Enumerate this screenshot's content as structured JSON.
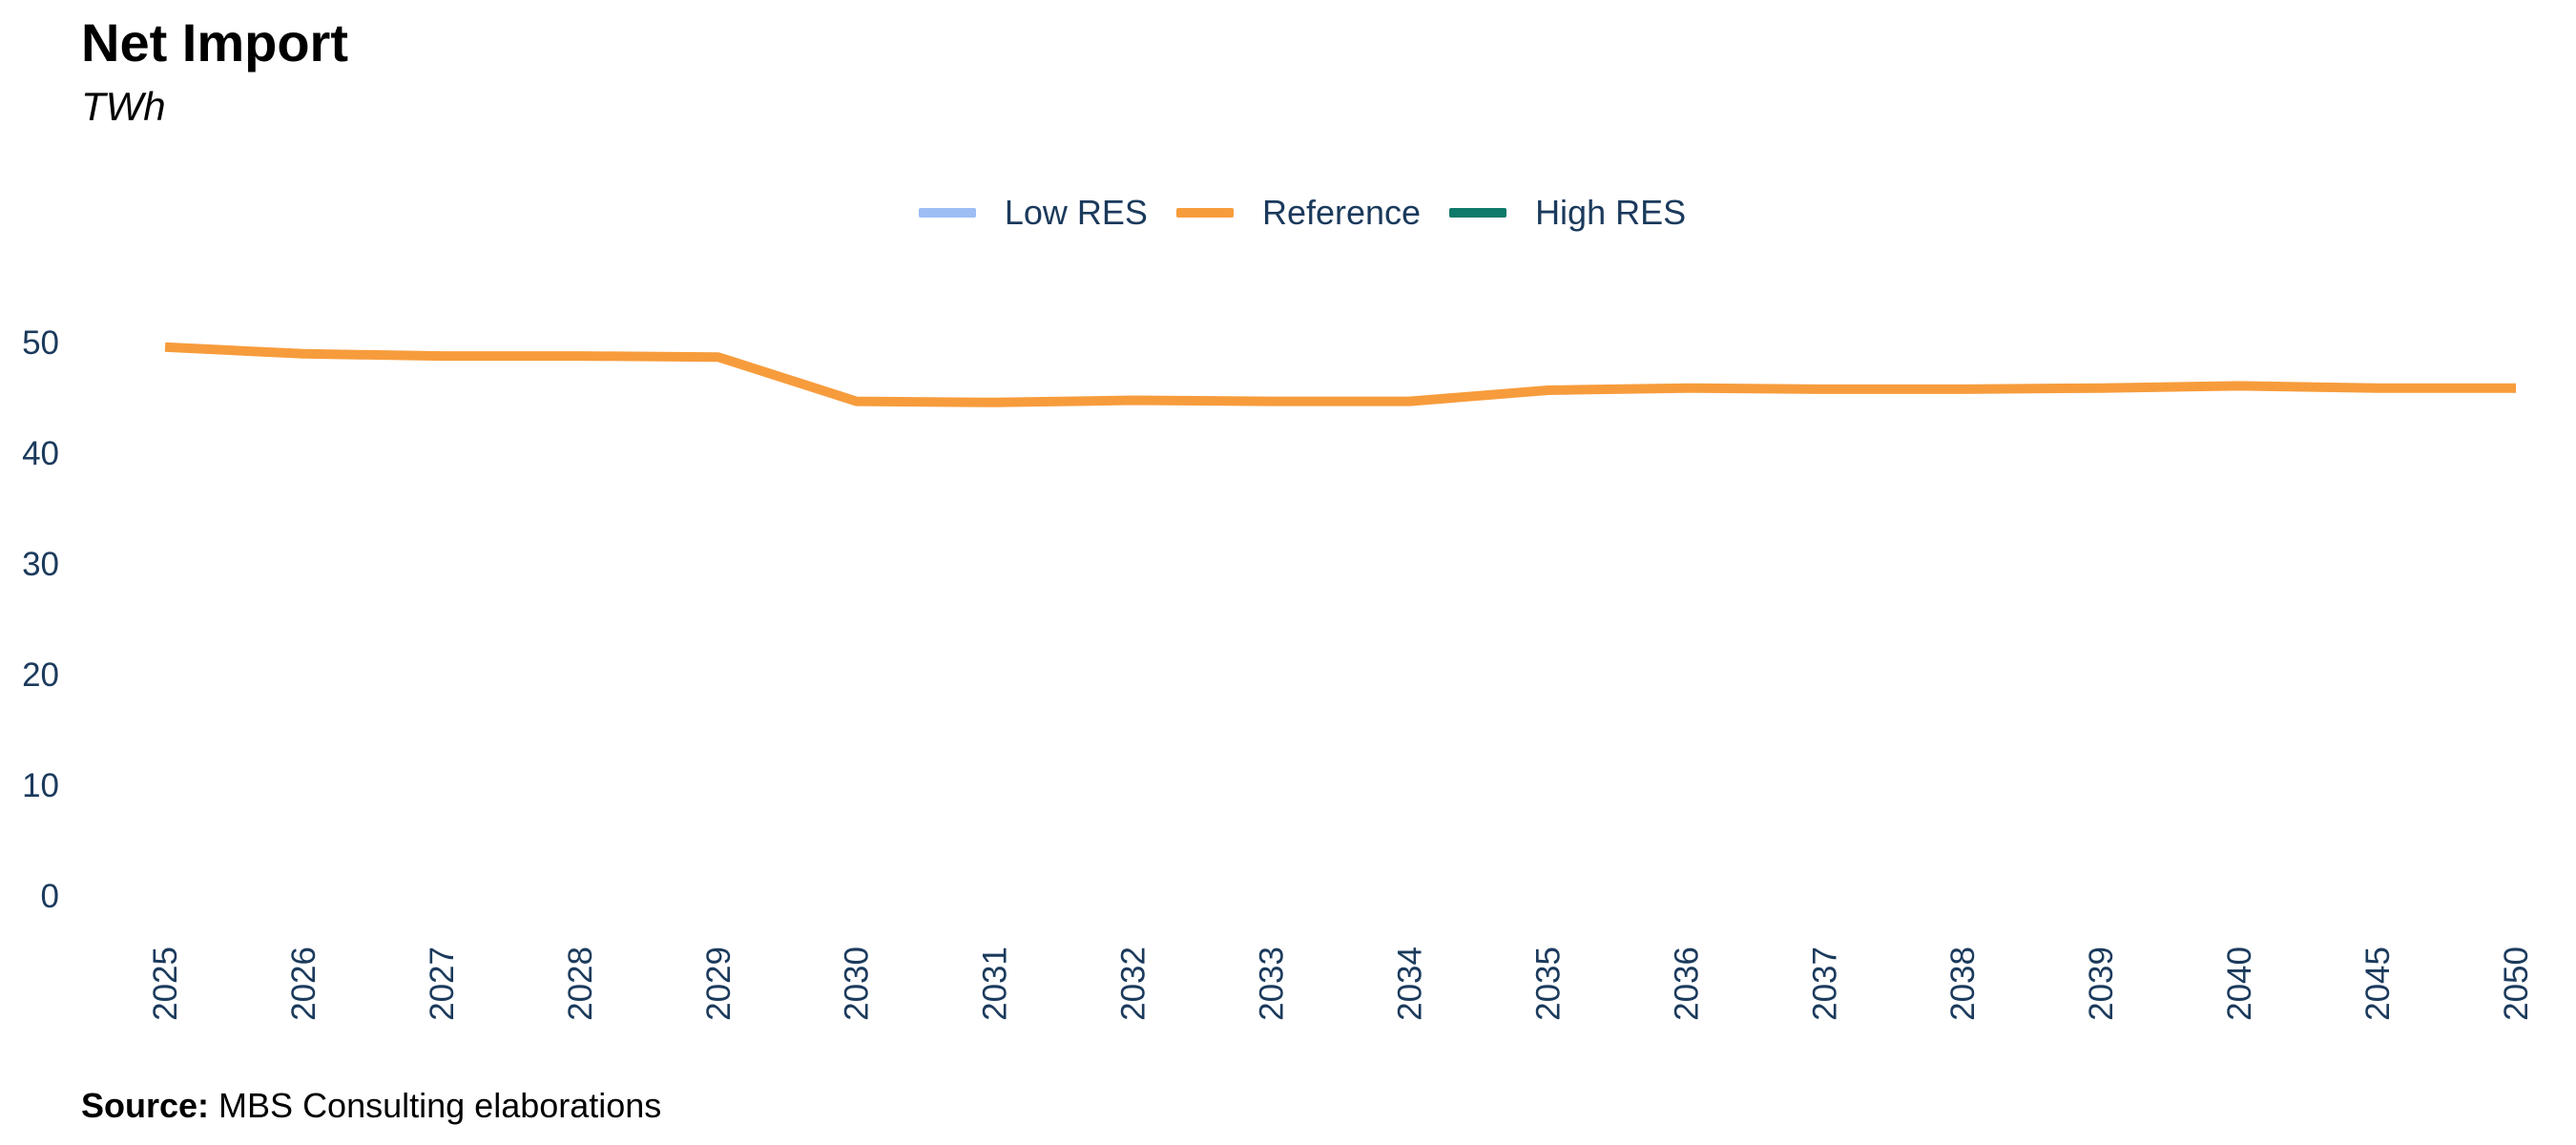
{
  "chart_data": {
    "type": "line",
    "title": "Net Import",
    "subtitle": "TWh",
    "x": [
      "2025",
      "2026",
      "2027",
      "2028",
      "2029",
      "2030",
      "2031",
      "2032",
      "2033",
      "2034",
      "2035",
      "2036",
      "2037",
      "2038",
      "2039",
      "2040",
      "2045",
      "2050"
    ],
    "series": [
      {
        "name": "Low RES",
        "color": "#9dbef5",
        "values": null
      },
      {
        "name": "Reference",
        "color": "#f79c3c",
        "values": [
          49.5,
          48.9,
          48.7,
          48.7,
          48.6,
          44.6,
          44.5,
          44.7,
          44.6,
          44.6,
          45.6,
          45.8,
          45.7,
          45.7,
          45.8,
          46.0,
          45.8,
          45.8
        ]
      },
      {
        "name": "High RES",
        "color": "#0f7a6a",
        "values": null
      }
    ],
    "yticks": [
      0,
      10,
      20,
      30,
      40,
      50
    ],
    "ylim": [
      0,
      55
    ],
    "grid": false,
    "legend_position": "top-center"
  },
  "source": {
    "label": "Source:",
    "text": " MBS Consulting elaborations"
  }
}
